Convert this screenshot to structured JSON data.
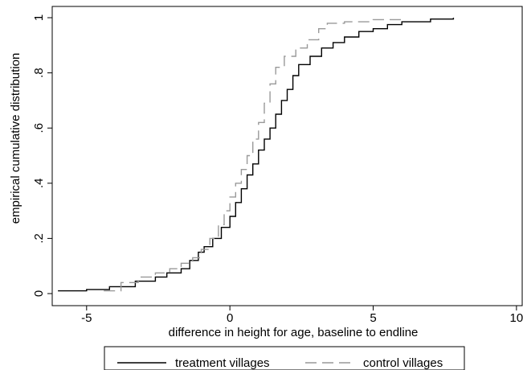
{
  "chart_data": {
    "type": "line",
    "title": "",
    "xlabel": "difference in height for age, baseline to endline",
    "ylabel": "empirical cumulative distribution",
    "xlim": [
      -6.2,
      10.2
    ],
    "ylim": [
      0,
      1
    ],
    "x_ticks": [
      -5,
      0,
      5,
      10
    ],
    "x_tick_labels": [
      "-5",
      "0",
      "5",
      "10"
    ],
    "y_ticks": [
      0,
      0.2,
      0.4,
      0.6,
      0.8,
      1
    ],
    "y_tick_labels": [
      "0",
      ".2",
      ".4",
      ".6",
      ".8",
      "1"
    ],
    "grid": false,
    "legend_position": "bottom",
    "series": [
      {
        "name": "treatment villages",
        "color": "#000000",
        "dash": "solid",
        "points": [
          [
            -6.0,
            0.01
          ],
          [
            -5.0,
            0.015
          ],
          [
            -4.2,
            0.025
          ],
          [
            -3.3,
            0.045
          ],
          [
            -2.6,
            0.06
          ],
          [
            -2.2,
            0.075
          ],
          [
            -1.7,
            0.09
          ],
          [
            -1.4,
            0.12
          ],
          [
            -1.1,
            0.15
          ],
          [
            -0.9,
            0.17
          ],
          [
            -0.6,
            0.2
          ],
          [
            -0.3,
            0.24
          ],
          [
            0.0,
            0.28
          ],
          [
            0.2,
            0.33
          ],
          [
            0.4,
            0.38
          ],
          [
            0.6,
            0.43
          ],
          [
            0.8,
            0.47
          ],
          [
            1.0,
            0.52
          ],
          [
            1.2,
            0.56
          ],
          [
            1.4,
            0.6
          ],
          [
            1.6,
            0.65
          ],
          [
            1.8,
            0.7
          ],
          [
            2.0,
            0.74
          ],
          [
            2.2,
            0.79
          ],
          [
            2.4,
            0.83
          ],
          [
            2.8,
            0.86
          ],
          [
            3.2,
            0.89
          ],
          [
            3.6,
            0.91
          ],
          [
            4.0,
            0.93
          ],
          [
            4.5,
            0.95
          ],
          [
            5.0,
            0.96
          ],
          [
            5.5,
            0.975
          ],
          [
            6.0,
            0.985
          ],
          [
            7.0,
            0.995
          ],
          [
            7.8,
            1.0
          ]
        ]
      },
      {
        "name": "control villages",
        "color": "#999999",
        "dash": "dashed",
        "points": [
          [
            -4.4,
            0.01
          ],
          [
            -3.8,
            0.04
          ],
          [
            -3.2,
            0.06
          ],
          [
            -2.6,
            0.075
          ],
          [
            -2.1,
            0.09
          ],
          [
            -1.7,
            0.11
          ],
          [
            -1.3,
            0.13
          ],
          [
            -1.0,
            0.16
          ],
          [
            -0.7,
            0.2
          ],
          [
            -0.4,
            0.25
          ],
          [
            -0.2,
            0.3
          ],
          [
            0.0,
            0.35
          ],
          [
            0.2,
            0.4
          ],
          [
            0.4,
            0.45
          ],
          [
            0.6,
            0.5
          ],
          [
            0.8,
            0.56
          ],
          [
            1.0,
            0.62
          ],
          [
            1.2,
            0.69
          ],
          [
            1.4,
            0.76
          ],
          [
            1.6,
            0.82
          ],
          [
            1.9,
            0.86
          ],
          [
            2.3,
            0.89
          ],
          [
            2.7,
            0.92
          ],
          [
            3.1,
            0.96
          ],
          [
            3.4,
            0.98
          ],
          [
            4.0,
            0.985
          ],
          [
            5.0,
            0.993
          ],
          [
            6.0,
            1.0
          ]
        ]
      }
    ]
  }
}
